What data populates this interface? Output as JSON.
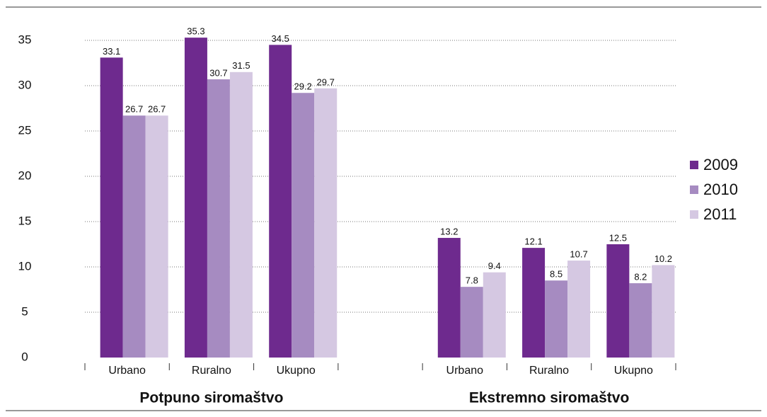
{
  "chart_data": {
    "type": "bar",
    "group_labels": [
      "Potpuno siromaštvo",
      "Ekstremno siromaštvo"
    ],
    "categories": [
      "Urbano",
      "Ruralno",
      "Ukupno",
      null,
      "Urbano",
      "Ruralno",
      "Ukupno"
    ],
    "series": [
      {
        "name": "2009",
        "color": "#6e2a8e",
        "values": [
          33.1,
          35.3,
          34.5,
          null,
          13.2,
          12.1,
          12.5
        ]
      },
      {
        "name": "2010",
        "color": "#a68bc1",
        "values": [
          26.7,
          30.7,
          29.2,
          null,
          7.8,
          8.5,
          8.2
        ]
      },
      {
        "name": "2011",
        "color": "#d5c8e2",
        "values": [
          26.7,
          31.5,
          29.7,
          null,
          9.4,
          10.7,
          10.2
        ]
      }
    ],
    "ylim": [
      0,
      35
    ],
    "yticks": [
      0,
      5,
      10,
      15,
      20,
      25,
      30,
      35
    ],
    "grid": true,
    "legend": "right"
  }
}
